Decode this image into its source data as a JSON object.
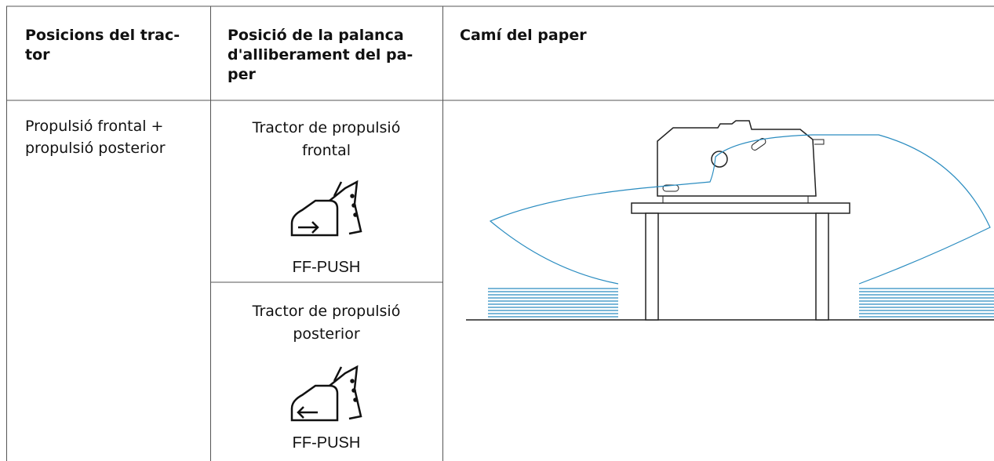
{
  "table": {
    "header": [
      [
        "Posicions del trac-",
        "tor"
      ],
      [
        "Posició de la palanca",
        "d'alliberament del pa-",
        "per"
      ],
      [
        "Camí del paper"
      ]
    ],
    "row": {
      "position": [
        "Propulsió frontal +",
        "propulsió posterior"
      ],
      "levers": [
        {
          "lines": [
            "Tractor de propulsió",
            "frontal"
          ],
          "icon_label": "FF-PUSH"
        },
        {
          "lines": [
            "Tractor de propulsió",
            "posterior"
          ],
          "icon_label": "FF-PUSH"
        }
      ]
    }
  }
}
